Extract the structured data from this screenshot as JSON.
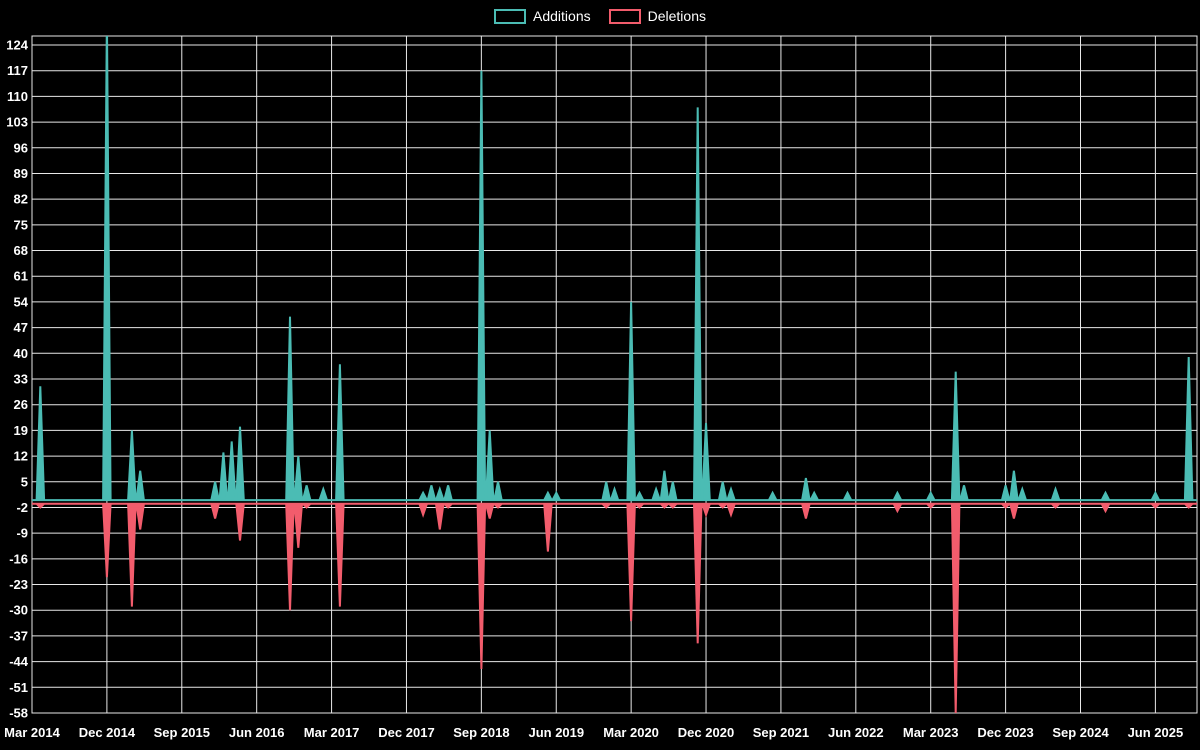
{
  "chart": {
    "background": "#000000",
    "grid_color": "#e8e8e8",
    "text_color": "#ffffff"
  },
  "legend": {
    "items": [
      {
        "label": "Additions",
        "color": "#4bbcb4"
      },
      {
        "label": "Deletions",
        "color": "#f25c6c"
      }
    ]
  },
  "chart_data": {
    "type": "line",
    "title": "",
    "xlabel": "",
    "ylabel": "",
    "legend_position": "top",
    "grid": true,
    "x_unit": "month",
    "x_start": "2014-03",
    "x_end": "2025-11",
    "ylim": [
      -58,
      126
    ],
    "y_tick_step": 7,
    "y_ticks": [
      124,
      117,
      110,
      103,
      96,
      89,
      82,
      75,
      68,
      61,
      54,
      47,
      40,
      33,
      26,
      19,
      12,
      5,
      -2,
      -9,
      -16,
      -23,
      -30,
      -37,
      -44,
      -51,
      -58
    ],
    "x_ticks": [
      {
        "label": "Mar 2014",
        "m": 0
      },
      {
        "label": "Dec 2014",
        "m": 9
      },
      {
        "label": "Sep 2015",
        "m": 18
      },
      {
        "label": "Jun 2016",
        "m": 27
      },
      {
        "label": "Mar 2017",
        "m": 36
      },
      {
        "label": "Dec 2017",
        "m": 45
      },
      {
        "label": "Sep 2018",
        "m": 54
      },
      {
        "label": "Jun 2019",
        "m": 63
      },
      {
        "label": "Mar 2020",
        "m": 72
      },
      {
        "label": "Dec 2020",
        "m": 81
      },
      {
        "label": "Sep 2021",
        "m": 90
      },
      {
        "label": "Jun 2022",
        "m": 99
      },
      {
        "label": "Mar 2023",
        "m": 108
      },
      {
        "label": "Dec 2023",
        "m": 117
      },
      {
        "label": "Sep 2024",
        "m": 126
      },
      {
        "label": "Jun 2025",
        "m": 135
      }
    ],
    "series": [
      {
        "name": "Additions",
        "color": "#4bbcb4",
        "baseline": 0,
        "spikes": [
          [
            "2014-04",
            31
          ],
          [
            "2014-12",
            132
          ],
          [
            "2015-03",
            19
          ],
          [
            "2015-04",
            8
          ],
          [
            "2016-01",
            5
          ],
          [
            "2016-02",
            13
          ],
          [
            "2016-03",
            16
          ],
          [
            "2016-04",
            20
          ],
          [
            "2016-10",
            50
          ],
          [
            "2016-11",
            12
          ],
          [
            "2016-12",
            4
          ],
          [
            "2017-02",
            3
          ],
          [
            "2017-04",
            37
          ],
          [
            "2018-02",
            2
          ],
          [
            "2018-03",
            4
          ],
          [
            "2018-04",
            3
          ],
          [
            "2018-05",
            4
          ],
          [
            "2018-09",
            117
          ],
          [
            "2018-10",
            19
          ],
          [
            "2018-11",
            5
          ],
          [
            "2019-05",
            2
          ],
          [
            "2019-06",
            2
          ],
          [
            "2019-12",
            5
          ],
          [
            "2020-01",
            3
          ],
          [
            "2020-03",
            54
          ],
          [
            "2020-04",
            2
          ],
          [
            "2020-06",
            3
          ],
          [
            "2020-07",
            8
          ],
          [
            "2020-08",
            5
          ],
          [
            "2020-11",
            107
          ],
          [
            "2020-12",
            21
          ],
          [
            "2021-02",
            5
          ],
          [
            "2021-03",
            3
          ],
          [
            "2021-08",
            2
          ],
          [
            "2021-12",
            6
          ],
          [
            "2022-01",
            2
          ],
          [
            "2022-05",
            2
          ],
          [
            "2022-11",
            2
          ],
          [
            "2023-03",
            2
          ],
          [
            "2023-06",
            35
          ],
          [
            "2023-07",
            4
          ],
          [
            "2023-12",
            4
          ],
          [
            "2024-01",
            8
          ],
          [
            "2024-02",
            3
          ],
          [
            "2024-06",
            3
          ],
          [
            "2024-12",
            2
          ],
          [
            "2025-06",
            2
          ],
          [
            "2025-10",
            39
          ]
        ]
      },
      {
        "name": "Deletions",
        "color": "#f25c6c",
        "baseline": -1,
        "spikes": [
          [
            "2014-04",
            -2
          ],
          [
            "2014-12",
            -21
          ],
          [
            "2015-03",
            -29
          ],
          [
            "2015-04",
            -8
          ],
          [
            "2016-01",
            -5
          ],
          [
            "2016-04",
            -11
          ],
          [
            "2016-10",
            -30
          ],
          [
            "2016-11",
            -13
          ],
          [
            "2016-12",
            -2
          ],
          [
            "2017-04",
            -29
          ],
          [
            "2018-02",
            -4
          ],
          [
            "2018-04",
            -8
          ],
          [
            "2018-05",
            -2
          ],
          [
            "2018-09",
            -46
          ],
          [
            "2018-10",
            -5
          ],
          [
            "2018-11",
            -2
          ],
          [
            "2019-05",
            -14
          ],
          [
            "2019-12",
            -2
          ],
          [
            "2020-03",
            -33
          ],
          [
            "2020-04",
            -2
          ],
          [
            "2020-07",
            -2
          ],
          [
            "2020-08",
            -2
          ],
          [
            "2020-11",
            -39
          ],
          [
            "2020-12",
            -4
          ],
          [
            "2021-02",
            -2
          ],
          [
            "2021-03",
            -4
          ],
          [
            "2021-12",
            -5
          ],
          [
            "2022-11",
            -3
          ],
          [
            "2023-03",
            -2
          ],
          [
            "2023-06",
            -58
          ],
          [
            "2023-12",
            -2
          ],
          [
            "2024-01",
            -5
          ],
          [
            "2024-06",
            -2
          ],
          [
            "2024-12",
            -3
          ],
          [
            "2025-06",
            -2
          ],
          [
            "2025-10",
            -2
          ]
        ]
      }
    ]
  }
}
